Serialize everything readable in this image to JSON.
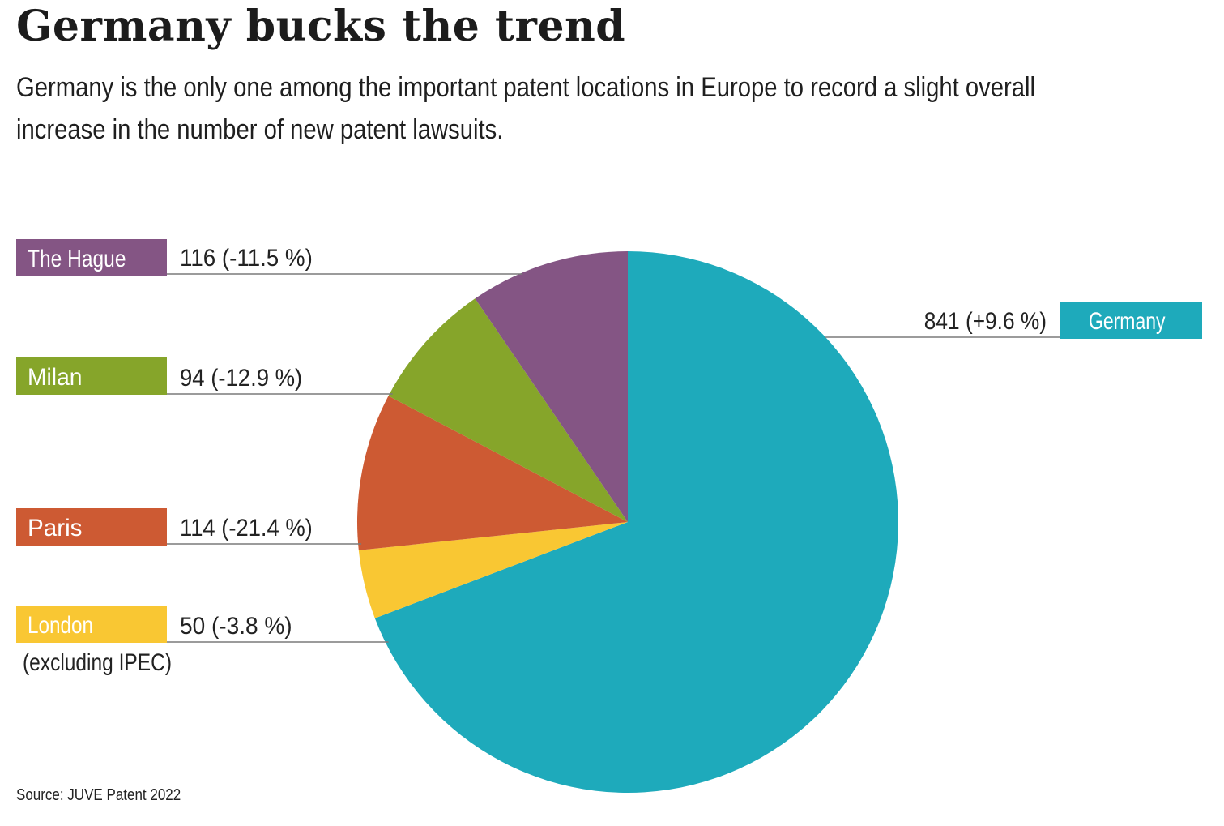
{
  "header": {
    "title": "Germany bucks the trend",
    "subtitle": "Germany is the only one among the important patent locations in Europe to record a slight overall increase in the number of new patent lawsuits."
  },
  "chart_data": {
    "type": "pie",
    "start_angle_deg": 0,
    "direction": "clockwise",
    "slices": [
      {
        "name": "Germany",
        "value": 841,
        "change": "+9.6 %",
        "value_label": "841 (+9.6 %)",
        "color": "#1eaabb"
      },
      {
        "name": "London",
        "note": "(excluding IPEC)",
        "value": 50,
        "change": "-3.8 %",
        "value_label": "50 (-3.8 %)",
        "color": "#f9c733"
      },
      {
        "name": "Paris",
        "value": 114,
        "change": "-21.4 %",
        "value_label": "114 (-21.4 %)",
        "color": "#cd5a33"
      },
      {
        "name": "Milan",
        "value": 94,
        "change": "-12.9 %",
        "value_label": "94 (-12.9 %)",
        "color": "#86a52a"
      },
      {
        "name": "The Hague",
        "value": 116,
        "change": "-11.5 %",
        "value_label": "116 (-11.5 %)",
        "color": "#845584"
      }
    ]
  },
  "footer": {
    "source": "Source: JUVE Patent 2022"
  }
}
